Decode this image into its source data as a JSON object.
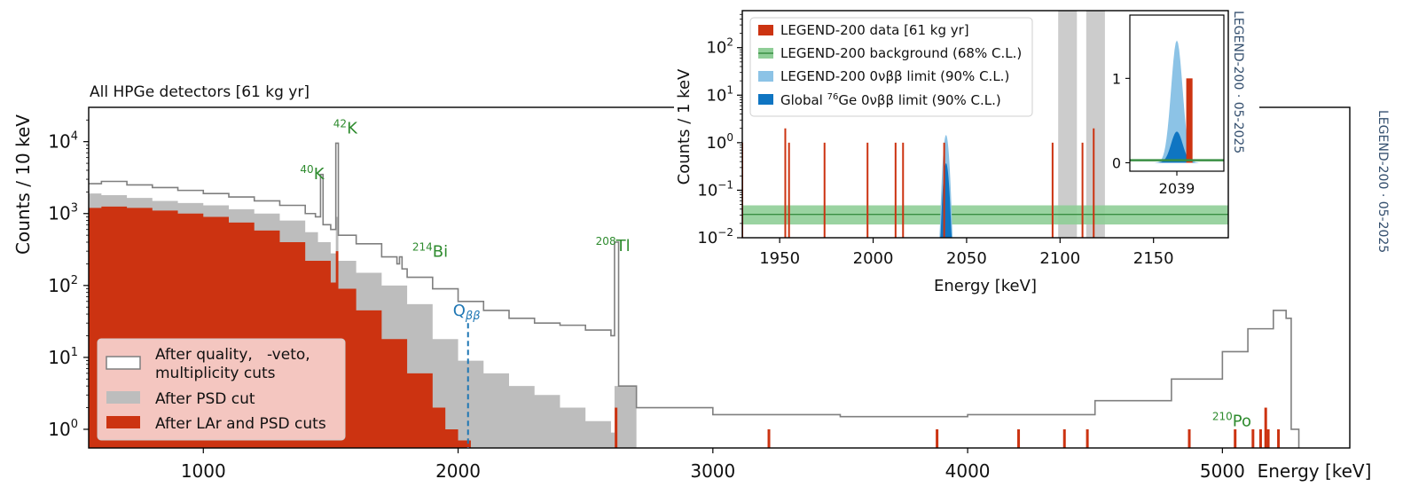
{
  "chart_data": [
    {
      "type": "histogram",
      "title": "All HPGe detectors [61 kg yr]",
      "xlabel": "Energy [keV]",
      "ylabel": "Counts / 10 keV",
      "xlim": [
        550,
        5500
      ],
      "ylim": [
        0.55,
        30000
      ],
      "yscale": "log",
      "x_ticks": [
        1000,
        2000,
        3000,
        4000,
        5000
      ],
      "x_tick_labels": [
        "1000",
        "2000",
        "3000",
        "4000",
        "5000"
      ],
      "y_ticks": [
        1,
        10,
        100,
        1000,
        10000
      ],
      "y_tick_bases": [
        "10",
        "10",
        "10",
        "10",
        "10"
      ],
      "y_tick_exps": [
        "0",
        "1",
        "2",
        "3",
        "4"
      ],
      "series": [
        {
          "name": "After quality,   -veto, multiplicity cuts",
          "style": "step-outline",
          "color": "#7f7f7f",
          "points": [
            [
              550,
              2600
            ],
            [
              600,
              2800
            ],
            [
              700,
              2500
            ],
            [
              800,
              2300
            ],
            [
              900,
              2100
            ],
            [
              1000,
              1900
            ],
            [
              1100,
              1700
            ],
            [
              1200,
              1500
            ],
            [
              1300,
              1300
            ],
            [
              1400,
              1000
            ],
            [
              1440,
              900
            ],
            [
              1460,
              3500
            ],
            [
              1470,
              700
            ],
            [
              1500,
              600
            ],
            [
              1520,
              9500
            ],
            [
              1530,
              500
            ],
            [
              1600,
              380
            ],
            [
              1700,
              250
            ],
            [
              1760,
              200
            ],
            [
              1770,
              250
            ],
            [
              1780,
              170
            ],
            [
              1800,
              130
            ],
            [
              1900,
              90
            ],
            [
              2000,
              60
            ],
            [
              2100,
              45
            ],
            [
              2200,
              35
            ],
            [
              2300,
              30
            ],
            [
              2400,
              28
            ],
            [
              2500,
              24
            ],
            [
              2600,
              20
            ],
            [
              2614,
              400
            ],
            [
              2630,
              4
            ],
            [
              2700,
              2
            ],
            [
              3000,
              1.6
            ],
            [
              3500,
              1.5
            ],
            [
              4000,
              1.6
            ],
            [
              4500,
              2.5
            ],
            [
              4800,
              5
            ],
            [
              5000,
              12
            ],
            [
              5100,
              25
            ],
            [
              5200,
              45
            ],
            [
              5250,
              35
            ],
            [
              5270,
              1
            ],
            [
              5300,
              0
            ]
          ]
        },
        {
          "name": "After PSD cut",
          "style": "filled",
          "color": "#bdbdbd",
          "points": [
            [
              550,
              1900
            ],
            [
              600,
              1800
            ],
            [
              700,
              1650
            ],
            [
              800,
              1500
            ],
            [
              900,
              1400
            ],
            [
              1000,
              1300
            ],
            [
              1100,
              1150
            ],
            [
              1200,
              1000
            ],
            [
              1300,
              800
            ],
            [
              1400,
              550
            ],
            [
              1450,
              400
            ],
            [
              1500,
              280
            ],
            [
              1520,
              900
            ],
            [
              1530,
              220
            ],
            [
              1600,
              150
            ],
            [
              1700,
              100
            ],
            [
              1800,
              55
            ],
            [
              1900,
              18
            ],
            [
              2000,
              9
            ],
            [
              2100,
              6
            ],
            [
              2200,
              4
            ],
            [
              2300,
              3
            ],
            [
              2400,
              2
            ],
            [
              2500,
              1.3
            ],
            [
              2600,
              0.9
            ],
            [
              2614,
              4
            ],
            [
              2700,
              0
            ]
          ]
        },
        {
          "name": "After LAr and PSD cuts",
          "style": "filled",
          "color": "#cc3311",
          "points": [
            [
              550,
              1200
            ],
            [
              600,
              1250
            ],
            [
              700,
              1200
            ],
            [
              800,
              1100
            ],
            [
              900,
              1000
            ],
            [
              1000,
              900
            ],
            [
              1100,
              750
            ],
            [
              1200,
              580
            ],
            [
              1300,
              400
            ],
            [
              1400,
              220
            ],
            [
              1500,
              110
            ],
            [
              1520,
              300
            ],
            [
              1530,
              90
            ],
            [
              1600,
              45
            ],
            [
              1700,
              18
            ],
            [
              1800,
              6
            ],
            [
              1900,
              2
            ],
            [
              1950,
              1
            ],
            [
              2000,
              0.7
            ],
            [
              2050,
              0
            ]
          ]
        }
      ],
      "spikes": [
        {
          "x": 2620,
          "y": 2
        },
        {
          "x": 3220,
          "y": 1
        },
        {
          "x": 3880,
          "y": 1
        },
        {
          "x": 4200,
          "y": 1
        },
        {
          "x": 4380,
          "y": 1
        },
        {
          "x": 4470,
          "y": 1
        },
        {
          "x": 4870,
          "y": 1
        },
        {
          "x": 5050,
          "y": 1
        },
        {
          "x": 5120,
          "y": 1
        },
        {
          "x": 5150,
          "y": 1
        },
        {
          "x": 5170,
          "y": 2
        },
        {
          "x": 5180,
          "y": 1
        },
        {
          "x": 5220,
          "y": 1
        }
      ],
      "q_line": {
        "x": 2039,
        "ymin": 0.55,
        "ymax": 30,
        "label_main": "Q",
        "label_sub": "ββ",
        "color": "#1f77b4"
      },
      "annotations": [
        {
          "iso_sup": "40",
          "iso": "K",
          "x": 1380,
          "y": 3000
        },
        {
          "iso_sup": "42",
          "iso": "K",
          "x": 1510,
          "y": 13000
        },
        {
          "iso_sup": "214",
          "iso": "Bi",
          "x": 1820,
          "y": 250
        },
        {
          "iso_sup": "208",
          "iso": "Tl",
          "x": 2540,
          "y": 300
        },
        {
          "iso_sup": "210",
          "iso": "Po",
          "x": 4960,
          "y": 1.1
        }
      ],
      "annotation_color": "#2e8b2e",
      "legend": {
        "position": "lower-left",
        "entries": [
          "After quality,   -veto,",
          "multiplicity cuts",
          "After PSD cut",
          "After LAr and PSD cuts"
        ]
      },
      "watermark": "LEGEND-200 · 05-2025"
    },
    {
      "type": "histogram",
      "xlabel": "Energy [keV]",
      "ylabel": "Counts / 1 keV",
      "xlim": [
        1930,
        2190
      ],
      "ylim": [
        0.01,
        600
      ],
      "yscale": "log",
      "x_ticks": [
        1950,
        2000,
        2050,
        2100,
        2150
      ],
      "x_tick_labels": [
        "1950",
        "2000",
        "2050",
        "2100",
        "2150"
      ],
      "y_ticks": [
        0.01,
        0.1,
        1,
        10,
        100
      ],
      "y_tick_bases": [
        "10",
        "10",
        "10",
        "10",
        "10"
      ],
      "y_tick_exps": [
        "−2",
        "−1",
        "0",
        "1",
        "2"
      ],
      "events": [
        1930,
        1953,
        1955,
        1974,
        1997,
        2012,
        2016,
        2038,
        2096,
        2112,
        2118
      ],
      "event_counts": [
        1,
        2,
        1,
        1,
        1,
        1,
        1,
        1,
        1,
        1,
        2
      ],
      "excluded_bands": [
        [
          2099,
          2109
        ],
        [
          2114,
          2124
        ]
      ],
      "background": {
        "value": 0.031,
        "low": 0.019,
        "high": 0.048
      },
      "limit_peak_local": {
        "center": 2039,
        "height": 1.45,
        "sigma": 1.1
      },
      "limit_peak_global": {
        "center": 2039,
        "height": 0.37,
        "sigma": 1.1
      },
      "legend": {
        "position": "upper-left",
        "entries": [
          "LEGEND-200 data [61 kg yr]",
          "LEGEND-200 background (68% C.L.)",
          "LEGEND-200 0νββ limit (90% C.L.)",
          "Global",
          "76",
          "Ge 0νββ limit (90% C.L.)"
        ]
      },
      "colors": {
        "data": "#cc3311",
        "background_band": "#8fce97",
        "background_line": "#3a8f43",
        "limit_local": "#8cc3e6",
        "limit_global": "#0f75c2",
        "band": "#cccccc"
      },
      "watermark": "LEGEND-200 · 05-2025"
    },
    {
      "type": "histogram",
      "xlim": [
        2030,
        2048
      ],
      "ylim": [
        -0.1,
        1.75
      ],
      "y_ticks": [
        0,
        1
      ],
      "y_tick_labels": [
        "0",
        "1"
      ],
      "x_ticks": [
        2039
      ],
      "x_tick_labels": [
        "2039"
      ],
      "event_bar": {
        "x0": 2040.8,
        "x1": 2042.0,
        "y": 1
      },
      "background_level": 0.03
    }
  ]
}
